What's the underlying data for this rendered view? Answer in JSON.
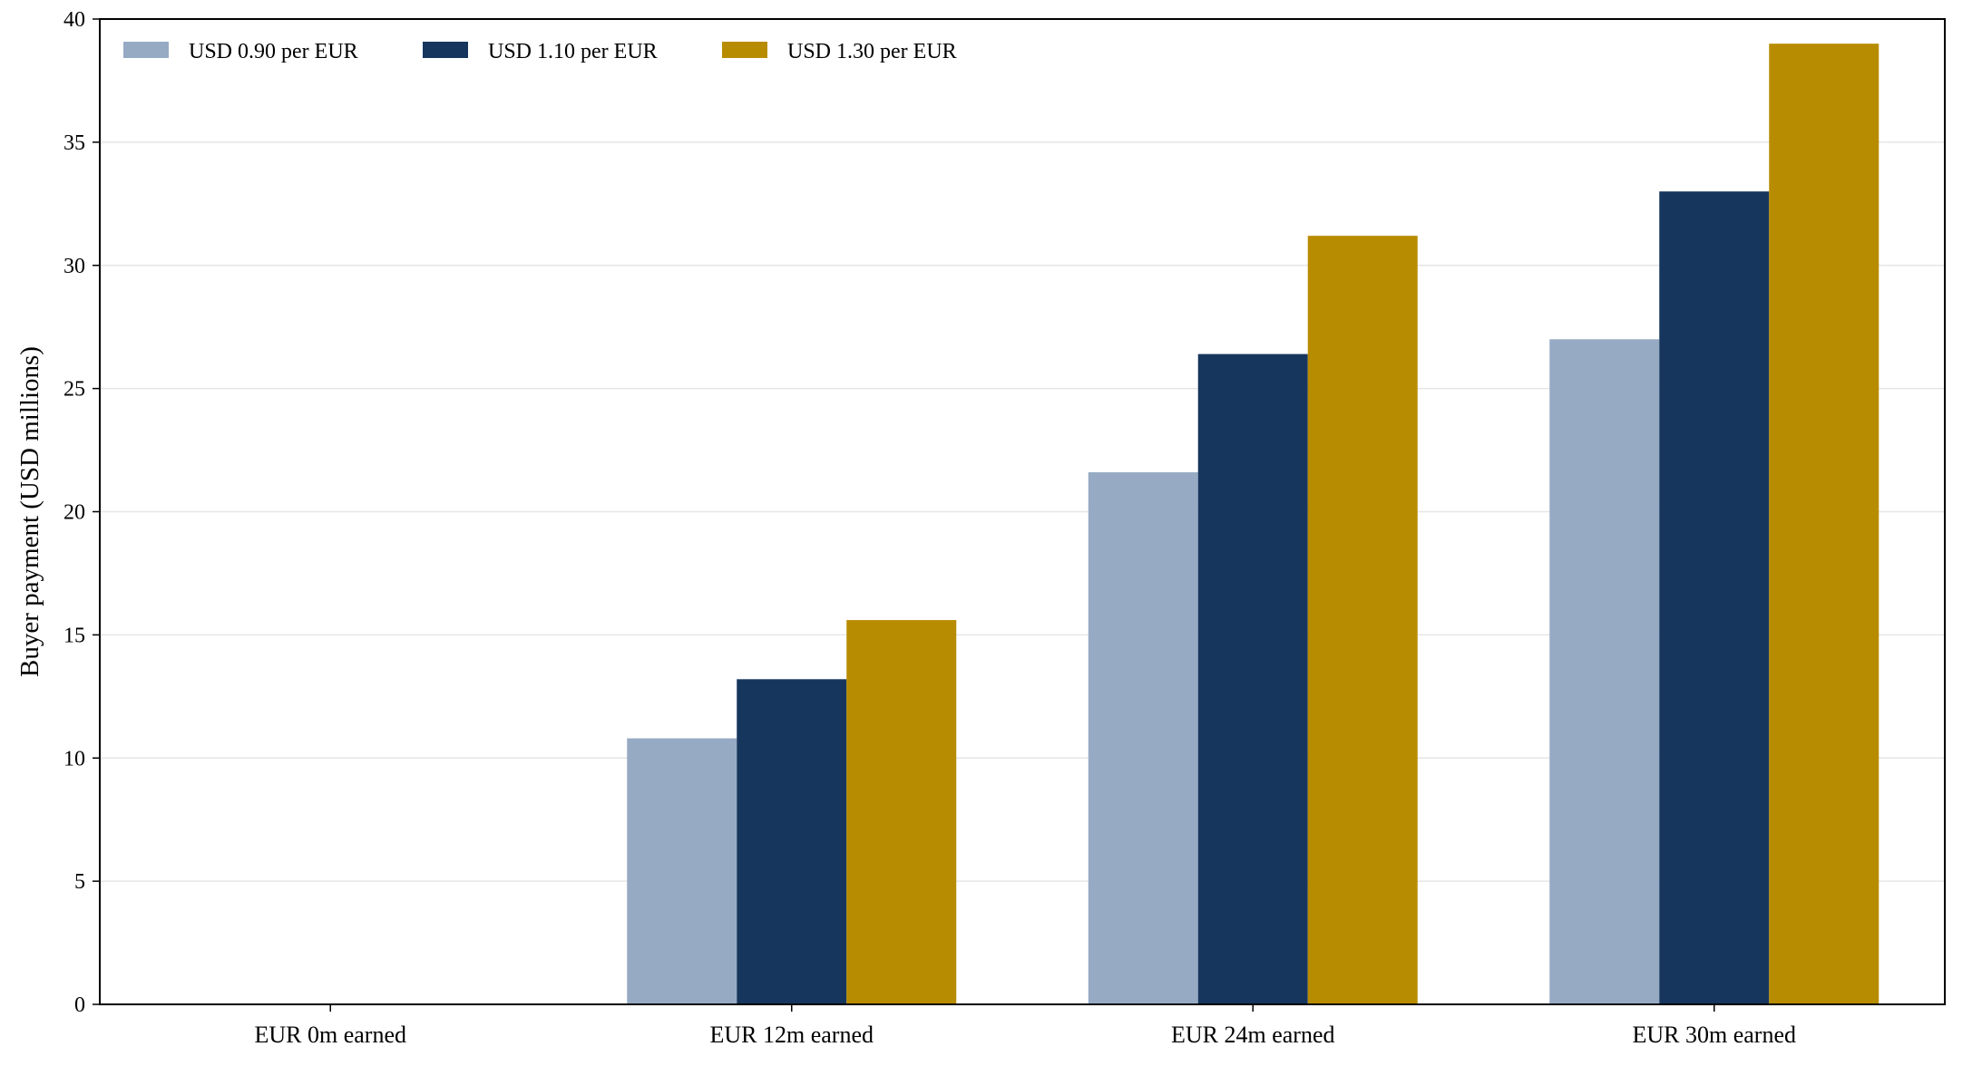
{
  "chart_data": {
    "type": "bar",
    "title": "",
    "xlabel": "",
    "ylabel": "Buyer payment (USD millions)",
    "categories": [
      "EUR 0m earned",
      "EUR 12m earned",
      "EUR 24m earned",
      "EUR 30m earned"
    ],
    "series": [
      {
        "name": "USD 0.90 per EUR",
        "color": "#97aac4",
        "values": [
          0,
          10.8,
          21.6,
          27.0
        ]
      },
      {
        "name": "USD 1.10 per EUR",
        "color": "#17365e",
        "values": [
          0,
          13.2,
          26.4,
          33.0
        ]
      },
      {
        "name": "USD 1.30 per EUR",
        "color": "#b88c00",
        "values": [
          0,
          15.6,
          31.2,
          39.0
        ]
      }
    ],
    "ylim": [
      0,
      40
    ],
    "yticks": [
      0,
      5,
      10,
      15,
      20,
      25,
      30,
      35,
      40
    ],
    "grid": "horizontal",
    "legend_position": "top-left"
  }
}
